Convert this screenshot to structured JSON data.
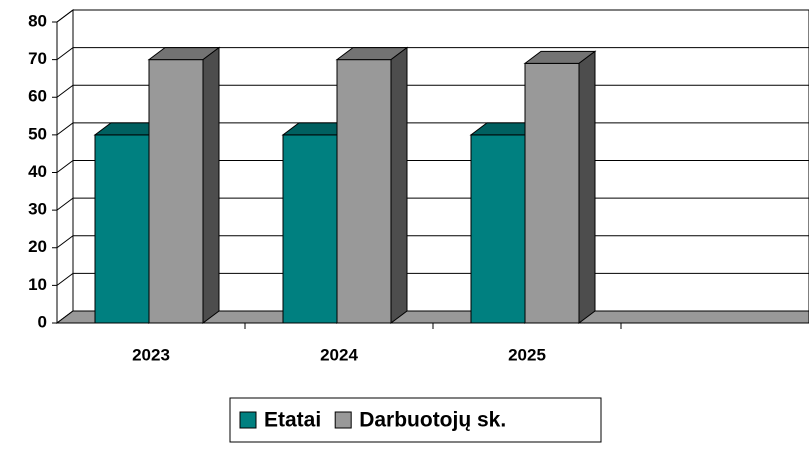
{
  "chart_data": {
    "type": "bar3d",
    "categories": [
      "2023",
      "2024",
      "2025",
      null
    ],
    "series": [
      {
        "name": "Etatai",
        "color": "#008080",
        "values": [
          50,
          50,
          50,
          null
        ]
      },
      {
        "name": "Darbuotojų sk.",
        "color": "#999999",
        "values": [
          70,
          70,
          69,
          null
        ]
      }
    ],
    "ylim": [
      0,
      80
    ],
    "yticks": [
      0,
      10,
      20,
      30,
      40,
      50,
      60,
      70,
      80
    ],
    "grid": true,
    "legend": "bottom"
  }
}
